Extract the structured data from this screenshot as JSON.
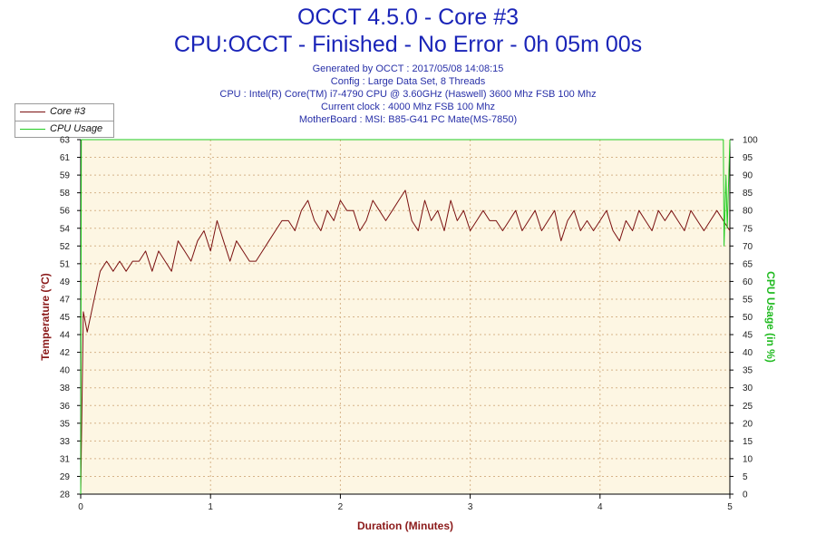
{
  "header": {
    "title_line1": "OCCT 4.5.0 - Core #3",
    "title_line2": "CPU:OCCT - Finished - No Error - 0h 05m 00s",
    "info": [
      "Generated by OCCT : 2017/05/08 14:08:15",
      "Config : Large Data Set, 8 Threads",
      "CPU : Intel(R) Core(TM) i7-4790 CPU @ 3.60GHz (Haswell) 3600 Mhz FSB 100 Mhz",
      "Current clock : 4000 Mhz FSB 100 Mhz",
      "MotherBoard : MSI: B85-G41 PC Mate(MS-7850)"
    ]
  },
  "legend": {
    "core_label": "Core #3",
    "cpu_label": "CPU Usage"
  },
  "colors": {
    "core": "#7a1010",
    "cpu": "#22cc22",
    "title": "#1a24b8",
    "axis_label_left": "#8b1a1a",
    "axis_label_right": "#22bb22",
    "plot_bg": "#fdf6e3",
    "grid": "#d6b48a"
  },
  "chart_data": {
    "type": "line",
    "title": "OCCT 4.5.0 - Core #3",
    "subtitle": "CPU:OCCT - Finished - No Error - 0h 05m 00s",
    "xlabel": "Duration (Minutes)",
    "ylabel": "Temperature (°C)",
    "y2label": "CPU Usage (in %)",
    "xlim": [
      0,
      5
    ],
    "ylim": [
      28,
      63
    ],
    "y2lim": [
      0,
      100
    ],
    "x_ticks": [
      "0",
      "1",
      "2",
      "3",
      "4",
      "5"
    ],
    "y_ticks": [
      "28",
      "29",
      "31",
      "33",
      "35",
      "36",
      "38",
      "40",
      "42",
      "44",
      "45",
      "47",
      "49",
      "51",
      "52",
      "54",
      "56",
      "58",
      "59",
      "61",
      "63"
    ],
    "y2_ticks": [
      "0",
      "5",
      "10",
      "15",
      "20",
      "25",
      "30",
      "35",
      "40",
      "45",
      "50",
      "55",
      "60",
      "65",
      "70",
      "75",
      "80",
      "85",
      "90",
      "95",
      "100"
    ],
    "grid": true,
    "legend_position": "top-left",
    "series": [
      {
        "name": "Core #3",
        "axis": "left",
        "x": [
          0,
          0.02,
          0.05,
          0.1,
          0.15,
          0.2,
          0.25,
          0.3,
          0.35,
          0.4,
          0.45,
          0.5,
          0.55,
          0.6,
          0.65,
          0.7,
          0.75,
          0.8,
          0.85,
          0.9,
          0.95,
          1.0,
          1.05,
          1.1,
          1.15,
          1.2,
          1.25,
          1.3,
          1.35,
          1.4,
          1.45,
          1.5,
          1.55,
          1.6,
          1.65,
          1.7,
          1.75,
          1.8,
          1.85,
          1.9,
          1.95,
          2.0,
          2.05,
          2.1,
          2.15,
          2.2,
          2.25,
          2.3,
          2.35,
          2.4,
          2.45,
          2.5,
          2.55,
          2.6,
          2.65,
          2.7,
          2.75,
          2.8,
          2.85,
          2.9,
          2.95,
          3.0,
          3.05,
          3.1,
          3.15,
          3.2,
          3.25,
          3.3,
          3.35,
          3.4,
          3.45,
          3.5,
          3.55,
          3.6,
          3.65,
          3.7,
          3.75,
          3.8,
          3.85,
          3.9,
          3.95,
          4.0,
          4.05,
          4.1,
          4.15,
          4.2,
          4.25,
          4.3,
          4.35,
          4.4,
          4.45,
          4.5,
          4.55,
          4.6,
          4.65,
          4.7,
          4.75,
          4.8,
          4.85,
          4.9,
          4.95,
          5.0
        ],
        "values": [
          28,
          46,
          44,
          47,
          50,
          51,
          50,
          51,
          50,
          51,
          51,
          52,
          50,
          52,
          51,
          50,
          53,
          52,
          51,
          53,
          54,
          52,
          55,
          53,
          51,
          53,
          52,
          51,
          51,
          52,
          53,
          54,
          55,
          55,
          54,
          56,
          57,
          55,
          54,
          56,
          55,
          57,
          56,
          56,
          54,
          55,
          57,
          56,
          55,
          56,
          57,
          58,
          55,
          54,
          57,
          55,
          56,
          54,
          57,
          55,
          56,
          54,
          55,
          56,
          55,
          55,
          54,
          55,
          56,
          54,
          55,
          56,
          54,
          55,
          56,
          53,
          55,
          56,
          54,
          55,
          54,
          55,
          56,
          54,
          53,
          55,
          54,
          56,
          55,
          54,
          56,
          55,
          56,
          55,
          54,
          56,
          55,
          54,
          55,
          56,
          55,
          54
        ]
      },
      {
        "name": "CPU Usage",
        "axis": "right",
        "x": [
          0,
          0.005,
          4.95,
          4.955,
          4.97,
          4.98,
          5.0
        ],
        "values": [
          0,
          100,
          100,
          70,
          90,
          75,
          100
        ]
      }
    ]
  }
}
